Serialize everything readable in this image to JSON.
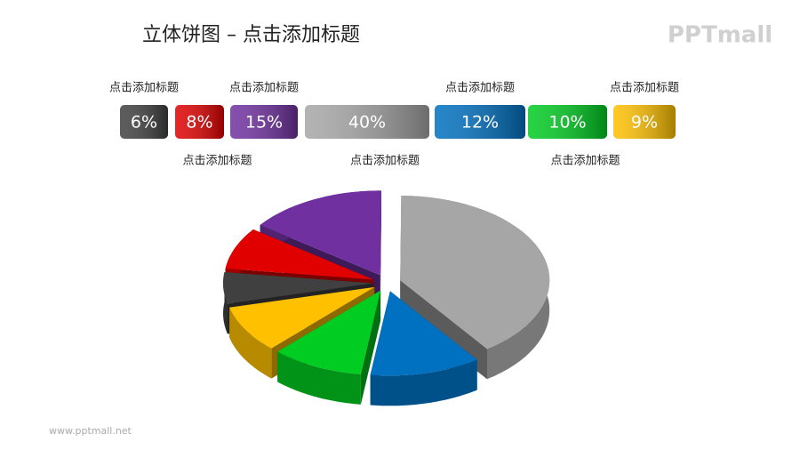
{
  "chart_data": {
    "type": "pie",
    "title": "立体饼图 – 点击添加标题",
    "categories": [
      "点击添加标题",
      "点击添加标题",
      "点击添加标题",
      "点击添加标题",
      "点击添加标题",
      "点击添加标题",
      "点击添加标题"
    ],
    "values": [
      6,
      8,
      15,
      40,
      12,
      10,
      9
    ],
    "value_labels": [
      "6%",
      "8%",
      "15%",
      "40%",
      "12%",
      "10%",
      "9%"
    ],
    "colors": [
      "#404040",
      "#e00000",
      "#7030a0",
      "#a6a6a6",
      "#0070c0",
      "#00cc22",
      "#ffc000"
    ]
  },
  "brand": "PPTmall",
  "footer": "www.pptmall.net"
}
